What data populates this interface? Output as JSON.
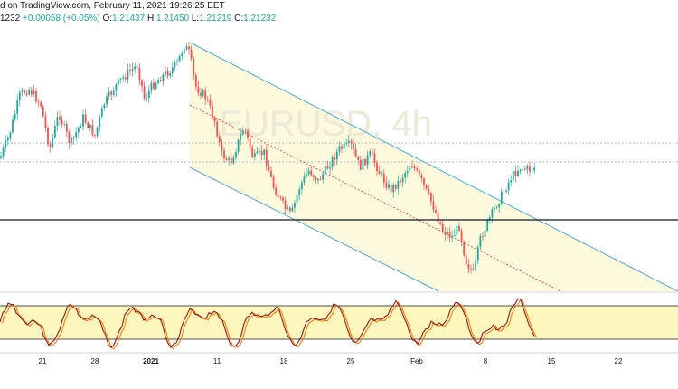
{
  "header": {
    "published": "d on TradingView.com, February 11, 2021 19:26:25 EET",
    "price_prefix": "1232",
    "change": "+0.00058 (+0.05%)",
    "o_label": "O:",
    "o_value": "1.21437",
    "h_label": "H:",
    "h_value": "1.21450",
    "l_label": "L:",
    "l_value": "1.21219",
    "c_label": "C:",
    "c_value": "1.21232"
  },
  "watermark": "EURUSD, 4h",
  "time_axis": {
    "labels": [
      "21",
      "28",
      "2021",
      "11",
      "18",
      "25",
      "Feb",
      "8",
      "15",
      "22"
    ]
  },
  "colors": {
    "bull": "#26a69a",
    "bear": "#ef5350",
    "channel_line": "#4fa9d6",
    "channel_fill": "#fdf9dc",
    "midline": "#ef5350",
    "oscillator_band": "#fdf7bd",
    "stoch_k": "#8b1a1a",
    "stoch_d": "#f57f17",
    "support": "#131722"
  }
}
